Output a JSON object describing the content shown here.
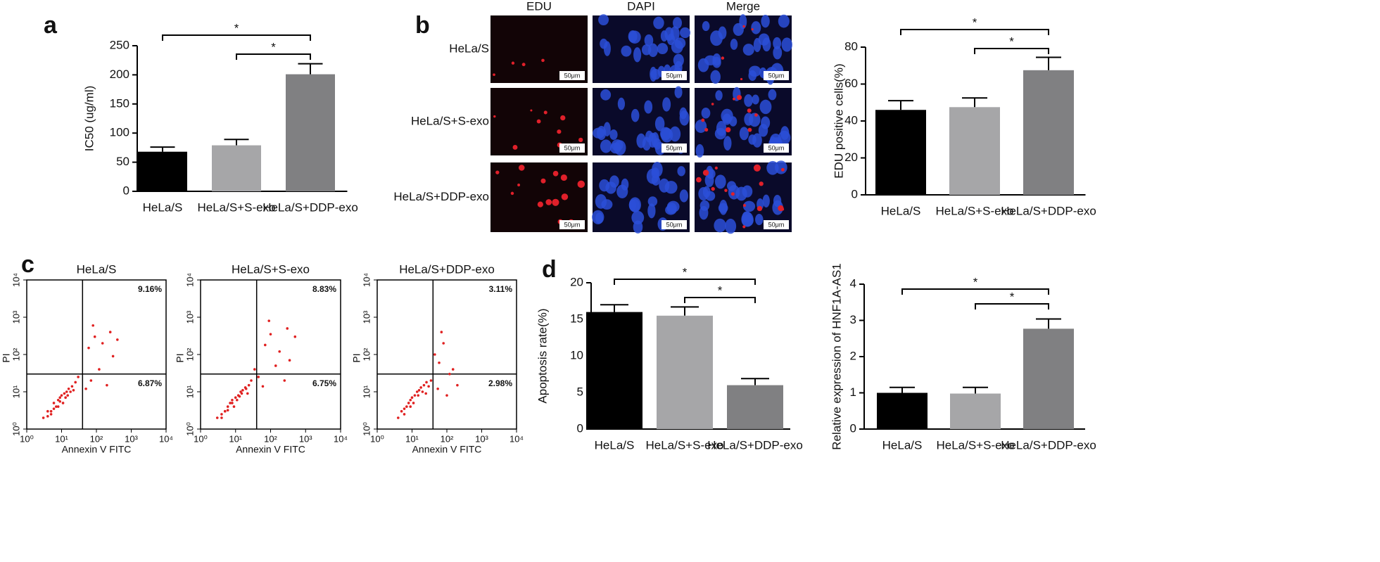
{
  "panel_labels": [
    "a",
    "b",
    "c",
    "d"
  ],
  "microscopy": {
    "columns": [
      "EDU",
      "DAPI",
      "Merge"
    ],
    "rows": [
      "HeLa/S",
      "HeLa/S+S-exo",
      "HeLa/S+DDP-exo"
    ],
    "scale_bar": "50μm"
  },
  "chart_data": [
    {
      "type": "bar",
      "ylabel": "IC50 (ug/ml)",
      "categories": [
        "HeLa/S",
        "HeLa/S+S-exo",
        "HeLa/S+DDP-exo"
      ],
      "values": [
        68,
        79,
        201
      ],
      "errors": [
        8,
        10,
        18
      ],
      "colors": [
        "#000000",
        "#a6a6a8",
        "#808082"
      ],
      "ylim": [
        0,
        250
      ],
      "yticks": [
        0,
        50,
        100,
        150,
        200,
        250
      ],
      "significance": [
        {
          "from": 0,
          "to": 2,
          "label": "*"
        },
        {
          "from": 1,
          "to": 2,
          "label": "*"
        }
      ]
    },
    {
      "type": "none"
    },
    {
      "type": "bar",
      "ylabel": "EDU positive cells(%)",
      "categories": [
        "HeLa/S",
        "HeLa/S+S-exo",
        "HeLa/S+DDP-exo"
      ],
      "values": [
        46,
        47.5,
        67.5
      ],
      "errors": [
        5,
        5,
        7
      ],
      "colors": [
        "#000000",
        "#a6a6a8",
        "#808082"
      ],
      "ylim": [
        0,
        80
      ],
      "yticks": [
        0,
        20,
        40,
        60,
        80
      ],
      "significance": [
        {
          "from": 0,
          "to": 2,
          "label": "*"
        },
        {
          "from": 1,
          "to": 2,
          "label": "*"
        }
      ]
    },
    {
      "type": "scatter",
      "title": "HeLa/S",
      "xlabel": "Annexin V FITC",
      "ylabel": "PI",
      "log": true,
      "color": "#e02020",
      "xlim": [
        1,
        10000
      ],
      "ylim": [
        1,
        10000
      ],
      "xticks": [
        {
          "value": 1,
          "label": "10⁰"
        },
        {
          "value": 10,
          "label": "10¹"
        },
        {
          "value": 100,
          "label": "10²"
        },
        {
          "value": 1000,
          "label": "10³"
        },
        {
          "value": 10000,
          "label": "10⁴"
        }
      ],
      "yticks": [
        {
          "value": 1,
          "label": "10⁰"
        },
        {
          "value": 10,
          "label": "10¹"
        },
        {
          "value": 100,
          "label": "10²"
        },
        {
          "value": 1000,
          "label": "10³"
        },
        {
          "value": 10000,
          "label": "10⁴"
        }
      ],
      "quadrant": [
        40,
        30
      ],
      "annotations": [
        "9.16%",
        "6.87%"
      ],
      "x": [
        3,
        4,
        5,
        6,
        7,
        8,
        9,
        10,
        12,
        14,
        16,
        20,
        25,
        5,
        8,
        11,
        15,
        18,
        60,
        90,
        150,
        250,
        400,
        120,
        200,
        80,
        300,
        50,
        70,
        30,
        6,
        9,
        13,
        4,
        22
      ],
      "y": [
        2,
        3,
        3,
        5,
        4,
        6,
        7,
        8,
        9,
        10,
        12,
        14,
        18,
        2.5,
        4,
        5,
        8,
        10,
        150,
        300,
        200,
        400,
        250,
        40,
        15,
        600,
        90,
        12,
        20,
        25,
        3.5,
        5.5,
        7,
        2.2,
        11
      ]
    },
    {
      "type": "scatter",
      "title": "HeLa/S+S-exo",
      "xlabel": "Annexin V FITC",
      "ylabel": "PI",
      "log": true,
      "color": "#e02020",
      "xlim": [
        1,
        10000
      ],
      "ylim": [
        1,
        10000
      ],
      "xticks": [
        {
          "value": 1,
          "label": "10⁰"
        },
        {
          "value": 10,
          "label": "10¹"
        },
        {
          "value": 100,
          "label": "10²"
        },
        {
          "value": 1000,
          "label": "10³"
        },
        {
          "value": 10000,
          "label": "10⁴"
        }
      ],
      "yticks": [
        {
          "value": 1,
          "label": "10⁰"
        },
        {
          "value": 10,
          "label": "10¹"
        },
        {
          "value": 100,
          "label": "10²"
        },
        {
          "value": 1000,
          "label": "10³"
        },
        {
          "value": 10000,
          "label": "10⁴"
        }
      ],
      "quadrant": [
        40,
        30
      ],
      "annotations": [
        "8.83%",
        "6.75%"
      ],
      "x": [
        3,
        4,
        5,
        6,
        7,
        8,
        10,
        12,
        14,
        16,
        19,
        24,
        28,
        5,
        9,
        11,
        15,
        20,
        70,
        100,
        180,
        300,
        500,
        140,
        250,
        90,
        350,
        60,
        45,
        35,
        6,
        8,
        13,
        4,
        22
      ],
      "y": [
        2,
        2.5,
        3,
        4,
        5,
        6,
        7,
        8,
        10,
        11,
        13,
        15,
        20,
        3,
        4,
        6,
        9,
        12,
        180,
        350,
        120,
        500,
        300,
        50,
        20,
        800,
        70,
        14,
        25,
        40,
        3.2,
        5,
        7.5,
        2,
        9
      ]
    },
    {
      "type": "scatter",
      "title": "HeLa/S+DDP-exo",
      "xlabel": "Annexin V FITC",
      "ylabel": "PI",
      "log": true,
      "color": "#e02020",
      "xlim": [
        1,
        10000
      ],
      "ylim": [
        1,
        10000
      ],
      "xticks": [
        {
          "value": 1,
          "label": "10⁰"
        },
        {
          "value": 10,
          "label": "10¹"
        },
        {
          "value": 100,
          "label": "10²"
        },
        {
          "value": 1000,
          "label": "10³"
        },
        {
          "value": 10000,
          "label": "10⁴"
        }
      ],
      "yticks": [
        {
          "value": 1,
          "label": "10⁰"
        },
        {
          "value": 10,
          "label": "10¹"
        },
        {
          "value": 100,
          "label": "10²"
        },
        {
          "value": 1000,
          "label": "10³"
        },
        {
          "value": 10000,
          "label": "10⁴"
        }
      ],
      "quadrant": [
        40,
        30
      ],
      "annotations": [
        "3.11%",
        "2.98%"
      ],
      "x": [
        4,
        5,
        6,
        7,
        8,
        9,
        10,
        12,
        14,
        16,
        18,
        22,
        26,
        6,
        9,
        11,
        15,
        20,
        60,
        80,
        120,
        200,
        45,
        55,
        100,
        70,
        150,
        35,
        30,
        25
      ],
      "y": [
        2,
        3,
        3.5,
        4,
        5,
        6,
        7,
        8,
        10,
        11,
        13,
        15,
        18,
        2.5,
        4,
        5,
        8,
        10,
        60,
        200,
        30,
        15,
        100,
        12,
        8,
        400,
        40,
        20,
        14,
        9
      ]
    },
    {
      "type": "bar",
      "ylabel": "Apoptosis rate(%)",
      "categories": [
        "HeLa/S",
        "HeLa/S+S-exo",
        "HeLa/S+DDP-exo"
      ],
      "values": [
        16,
        15.5,
        6
      ],
      "errors": [
        1,
        1.2,
        0.9
      ],
      "colors": [
        "#000000",
        "#a6a6a8",
        "#808082"
      ],
      "ylim": [
        0,
        20
      ],
      "yticks": [
        0,
        5,
        10,
        15,
        20
      ],
      "significance": [
        {
          "from": 0,
          "to": 2,
          "label": "*"
        },
        {
          "from": 1,
          "to": 2,
          "label": "*"
        }
      ]
    },
    {
      "type": "bar",
      "ylabel": "Relative expression of HNF1A-AS1",
      "categories": [
        "HeLa/S",
        "HeLa/S+S-exo",
        "HeLa/S+DDP-exo"
      ],
      "values": [
        1,
        0.98,
        2.77
      ],
      "errors": [
        0.15,
        0.17,
        0.27
      ],
      "colors": [
        "#000000",
        "#a6a6a8",
        "#808082"
      ],
      "ylim": [
        0,
        4
      ],
      "yticks": [
        0,
        1,
        2,
        3,
        4
      ],
      "significance": [
        {
          "from": 0,
          "to": 2,
          "label": "*"
        },
        {
          "from": 1,
          "to": 2,
          "label": "*"
        }
      ]
    }
  ]
}
